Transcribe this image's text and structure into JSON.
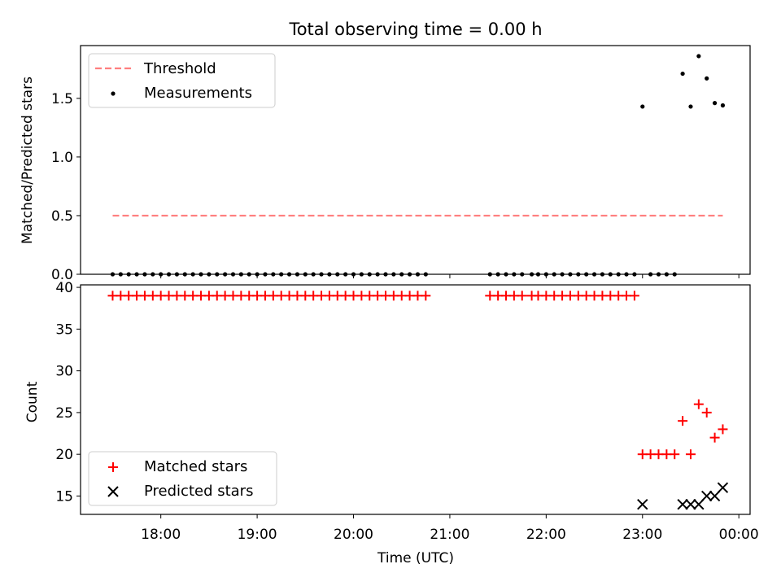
{
  "colors": {
    "threshold": "#ff7f7f",
    "measurement": "#000000",
    "matched": "#ff0000",
    "predicted": "#000000",
    "axes": "#000000",
    "background": "#ffffff"
  },
  "chart_data": [
    {
      "type": "scatter",
      "title": "Total observing time = 0.00 h",
      "xlabel": "",
      "ylabel": "Matched/Predicted stars",
      "x_axis": "time-of-day",
      "xlim": [
        "17:10",
        "00:07"
      ],
      "ylim": [
        0,
        1.95
      ],
      "yticks": [
        "0.0",
        "0.5",
        "1.0",
        "1.5"
      ],
      "legend": {
        "placement": "top-left",
        "entries": [
          "Threshold",
          "Measurements"
        ]
      },
      "series": [
        {
          "name": "Threshold",
          "kind": "line",
          "style": "dashed",
          "x": [
            "17:30",
            "23:50"
          ],
          "y": [
            0.5,
            0.5
          ]
        },
        {
          "name": "Measurements",
          "kind": "scatter",
          "marker": "dot",
          "x": [
            "17:30",
            "17:35",
            "17:40",
            "17:45",
            "17:50",
            "17:55",
            "18:00",
            "18:05",
            "18:10",
            "18:15",
            "18:20",
            "18:25",
            "18:30",
            "18:35",
            "18:40",
            "18:45",
            "18:50",
            "18:55",
            "19:00",
            "19:05",
            "19:10",
            "19:15",
            "19:20",
            "19:25",
            "19:30",
            "19:35",
            "19:40",
            "19:45",
            "19:50",
            "19:55",
            "20:00",
            "20:05",
            "20:10",
            "20:15",
            "20:20",
            "20:25",
            "20:30",
            "20:35",
            "20:40",
            "20:45",
            "21:25",
            "21:30",
            "21:35",
            "21:40",
            "21:45",
            "21:51",
            "21:55",
            "22:00",
            "22:05",
            "22:10",
            "22:15",
            "22:20",
            "22:25",
            "22:30",
            "22:35",
            "22:40",
            "22:45",
            "22:50",
            "22:55",
            "23:00",
            "23:05",
            "23:10",
            "23:15",
            "23:20",
            "23:25",
            "23:30",
            "23:35",
            "23:40",
            "23:45",
            "23:50"
          ],
          "y": [
            0,
            0,
            0,
            0,
            0,
            0,
            0,
            0,
            0,
            0,
            0,
            0,
            0,
            0,
            0,
            0,
            0,
            0,
            0,
            0,
            0,
            0,
            0,
            0,
            0,
            0,
            0,
            0,
            0,
            0,
            0,
            0,
            0,
            0,
            0,
            0,
            0,
            0,
            0,
            0,
            0,
            0,
            0,
            0,
            0,
            0,
            0,
            0,
            0,
            0,
            0,
            0,
            0,
            0,
            0,
            0,
            0,
            0,
            0,
            1.43,
            0,
            0,
            0,
            0,
            1.71,
            1.43,
            1.86,
            1.67,
            1.46,
            1.44
          ]
        }
      ]
    },
    {
      "type": "scatter",
      "title": "",
      "xlabel": "Time (UTC)",
      "ylabel": "Count",
      "x_axis": "time-of-day",
      "xlim": [
        "17:10",
        "00:07"
      ],
      "xticks": [
        "18:00",
        "19:00",
        "20:00",
        "21:00",
        "22:00",
        "23:00",
        "00:00"
      ],
      "ylim": [
        12.8,
        40.3
      ],
      "yticks": [
        "15",
        "20",
        "25",
        "30",
        "35",
        "40"
      ],
      "legend": {
        "placement": "bottom-left",
        "entries": [
          "Matched stars",
          "Predicted stars"
        ]
      },
      "series": [
        {
          "name": "Matched stars",
          "kind": "scatter",
          "marker": "plus",
          "x": [
            "17:30",
            "17:35",
            "17:40",
            "17:45",
            "17:50",
            "17:55",
            "18:00",
            "18:05",
            "18:10",
            "18:15",
            "18:20",
            "18:25",
            "18:30",
            "18:35",
            "18:40",
            "18:45",
            "18:50",
            "18:55",
            "19:00",
            "19:05",
            "19:10",
            "19:15",
            "19:20",
            "19:25",
            "19:30",
            "19:35",
            "19:40",
            "19:45",
            "19:50",
            "19:55",
            "20:00",
            "20:05",
            "20:10",
            "20:15",
            "20:20",
            "20:25",
            "20:30",
            "20:35",
            "20:40",
            "20:45",
            "21:25",
            "21:30",
            "21:35",
            "21:40",
            "21:45",
            "21:51",
            "21:55",
            "22:00",
            "22:05",
            "22:10",
            "22:15",
            "22:20",
            "22:25",
            "22:30",
            "22:35",
            "22:40",
            "22:45",
            "22:50",
            "22:55",
            "23:00",
            "23:05",
            "23:10",
            "23:15",
            "23:20",
            "23:25",
            "23:30",
            "23:35",
            "23:40",
            "23:45",
            "23:50"
          ],
          "y": [
            39,
            39,
            39,
            39,
            39,
            39,
            39,
            39,
            39,
            39,
            39,
            39,
            39,
            39,
            39,
            39,
            39,
            39,
            39,
            39,
            39,
            39,
            39,
            39,
            39,
            39,
            39,
            39,
            39,
            39,
            39,
            39,
            39,
            39,
            39,
            39,
            39,
            39,
            39,
            39,
            39,
            39,
            39,
            39,
            39,
            39,
            39,
            39,
            39,
            39,
            39,
            39,
            39,
            39,
            39,
            39,
            39,
            39,
            39,
            20,
            20,
            20,
            20,
            20,
            24,
            20,
            26,
            25,
            22,
            23
          ]
        },
        {
          "name": "Predicted stars",
          "kind": "scatter",
          "marker": "x",
          "x": [
            "23:00",
            "23:25",
            "23:30",
            "23:35",
            "23:40",
            "23:45",
            "23:50"
          ],
          "y": [
            14,
            14,
            14,
            14,
            15,
            15,
            16
          ]
        }
      ]
    }
  ]
}
